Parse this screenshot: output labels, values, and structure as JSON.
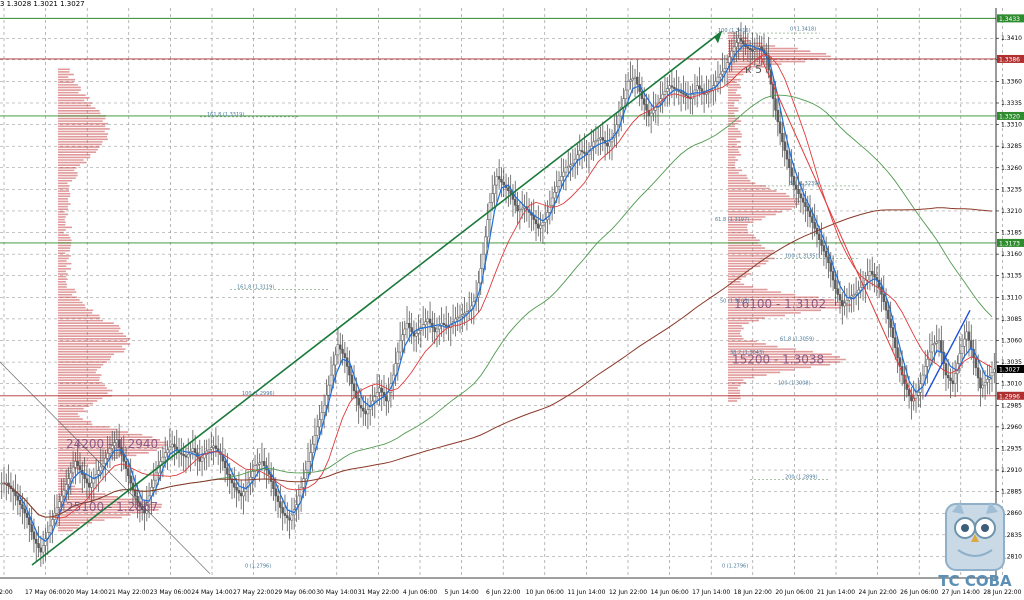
{
  "header": {
    "ohlc": "3 1.3028 1.3021 1.3027"
  },
  "colors": {
    "background": "#ffffff",
    "grid": "#8a8a8a",
    "candle": "#5a5a5a",
    "ma_fast": "#1e6fd9",
    "ma_mid": "#e03a3a",
    "ma_slow": "#4f9a4f",
    "ma_long": "#8b3a2a",
    "trend": "#1a7a3a",
    "profile": "#c8484a",
    "profile_left": "#2f7a6a",
    "hline_red": "#b03030",
    "hline_green": "#2e8b2e"
  },
  "logo": {
    "text": "TC COBA",
    "icon": "owl-icon"
  },
  "chart_data": {
    "type": "line",
    "title": "",
    "ylim": [
      1.2785,
      1.3445
    ],
    "grid": true,
    "y_ticks": [
      "1.3410",
      "1.3385",
      "1.3360",
      "1.3335",
      "1.3310",
      "1.3285",
      "1.3260",
      "1.3235",
      "1.3210",
      "1.3185",
      "1.3160",
      "1.3135",
      "1.3110",
      "1.3085",
      "1.3060",
      "1.3035",
      "1.3010",
      "1.2985",
      "1.2960",
      "1.2935",
      "1.2910",
      "1.2885",
      "1.2860",
      "1.2835",
      "1.2810"
    ],
    "x_ticks": [
      "22:00",
      "17 May 06:00",
      "20 May 14:00",
      "21 May 22:00",
      "23 May 06:00",
      "24 May 14:00",
      "27 May 22:00",
      "29 May 06:00",
      "30 May 14:00",
      "31 May 22:00",
      "4 Jun 06:00",
      "5 Jun 14:00",
      "6 Jun 22:00",
      "10 Jun 06:00",
      "11 Jun 14:00",
      "12 Jun 22:00",
      "14 Jun 06:00",
      "17 Jun 14:00",
      "18 Jun 22:00",
      "20 Jun 06:00",
      "21 Jun 14:00",
      "24 Jun 22:00",
      "26 Jun 06:00",
      "27 Jun 14:00",
      "28 Jun 22:00"
    ],
    "price_labels": [
      {
        "text": "1.3433",
        "value": 1.3433,
        "type": "green"
      },
      {
        "text": "1.3386",
        "value": 1.3386,
        "type": "red"
      },
      {
        "text": "1.3320",
        "value": 1.332,
        "type": "green"
      },
      {
        "text": "1.3173",
        "value": 1.3173,
        "type": "green"
      },
      {
        "text": "1.3027",
        "value": 1.3027,
        "type": "current"
      },
      {
        "text": "1.2996",
        "value": 1.2996,
        "type": "red"
      }
    ],
    "profile_labels": [
      {
        "text": "24200 - 1.2940",
        "value": 1.294
      },
      {
        "text": "25100 - 1.2867",
        "value": 1.2867
      },
      {
        "text": "16100 - 1.3102",
        "value": 1.3102
      },
      {
        "text": "15200 - 1.3038",
        "value": 1.3038
      }
    ],
    "fib_labels": [
      {
        "text": "100 (1.3416)",
        "value": 1.3416
      },
      {
        "text": "0 (1.3418)",
        "value": 1.3418
      },
      {
        "text": "161.8 (1.3319)",
        "value": 1.3319
      },
      {
        "text": "50 (1.3239)",
        "value": 1.3239
      },
      {
        "text": "61.8 (1.3197)",
        "value": 1.3197
      },
      {
        "text": "100 (1.3155)",
        "value": 1.3155
      },
      {
        "text": "161.8 (1.3119)",
        "value": 1.3119
      },
      {
        "text": "50 (1.3103)",
        "value": 1.3103
      },
      {
        "text": "61.8 (1.3059)",
        "value": 1.3059
      },
      {
        "text": "38.2 (1.3043)",
        "value": 1.3043
      },
      {
        "text": "100 (1.2996)",
        "value": 1.2996
      },
      {
        "text": "100 (1.3008)",
        "value": 1.3008
      },
      {
        "text": "200 (1.2899)",
        "value": 1.2899
      },
      {
        "text": "0 (1.2796)",
        "value": 1.2796
      },
      {
        "text": "0 (1.2796)",
        "value": 1.2796
      }
    ],
    "wave_label": "к 5",
    "close": [
      1.2895,
      1.2885,
      1.287,
      1.2855,
      1.283,
      1.2815,
      1.2838,
      1.286,
      1.288,
      1.29,
      1.292,
      1.2905,
      1.289,
      1.2905,
      1.2918,
      1.2935,
      1.2945,
      1.292,
      1.2895,
      1.2872,
      1.286,
      1.289,
      1.2915,
      1.293,
      1.294,
      1.293,
      1.2925,
      1.2935,
      1.292,
      1.2932,
      1.2938,
      1.2928,
      1.2905,
      1.289,
      1.288,
      1.2895,
      1.2915,
      1.292,
      1.2905,
      1.288,
      1.286,
      1.2852,
      1.287,
      1.29,
      1.293,
      1.296,
      1.2985,
      1.302,
      1.3055,
      1.304,
      1.301,
      1.2985,
      1.2975,
      1.299,
      1.3005,
      1.299,
      1.302,
      1.306,
      1.308,
      1.3065,
      1.3075,
      1.3085,
      1.307,
      1.308,
      1.3075,
      1.3085,
      1.309,
      1.3095,
      1.311,
      1.316,
      1.322,
      1.325,
      1.324,
      1.323,
      1.321,
      1.3215,
      1.3205,
      1.319,
      1.32,
      1.3225,
      1.3245,
      1.326,
      1.3265,
      1.328,
      1.3275,
      1.329,
      1.3295,
      1.3285,
      1.33,
      1.333,
      1.336,
      1.3365,
      1.334,
      1.332,
      1.333,
      1.3345,
      1.3355,
      1.335,
      1.3345,
      1.334,
      1.3355,
      1.3345,
      1.335,
      1.3365,
      1.3375,
      1.3395,
      1.341,
      1.34,
      1.3395,
      1.34,
      1.339,
      1.334,
      1.33,
      1.327,
      1.324,
      1.3225,
      1.321,
      1.319,
      1.317,
      1.315,
      1.312,
      1.31,
      1.311,
      1.3115,
      1.3125,
      1.314,
      1.313,
      1.3105,
      1.3075,
      1.304,
      1.301,
      1.299,
      1.3,
      1.303,
      1.3055,
      1.306,
      1.302,
      1.301,
      1.3045,
      1.307,
      1.304,
      1.3005,
      1.3015,
      1.3027
    ],
    "series": [
      {
        "name": "",
        "values": []
      }
    ]
  }
}
